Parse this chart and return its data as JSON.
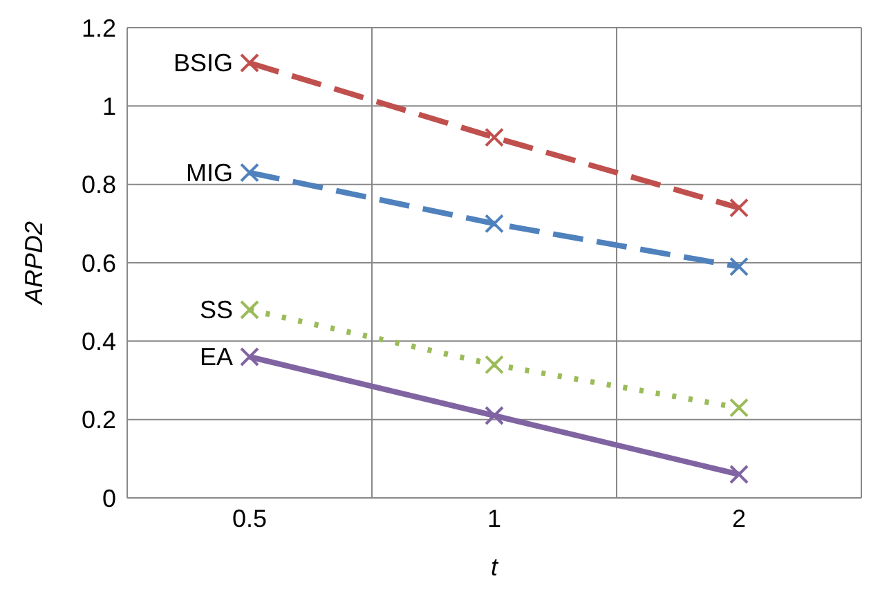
{
  "chart_data": {
    "type": "line",
    "xlabel": "t",
    "ylabel": "ARPD2",
    "categories": [
      "0.5",
      "1",
      "2"
    ],
    "series": [
      {
        "name": "BSIG",
        "color": "#c0504d",
        "line_style": "dashed",
        "values": [
          1.11,
          0.92,
          0.74
        ]
      },
      {
        "name": "MIG",
        "color": "#4f81bd",
        "line_style": "dashed",
        "values": [
          0.83,
          0.7,
          0.59
        ]
      },
      {
        "name": "SS",
        "color": "#9bbb59",
        "line_style": "dotted",
        "values": [
          0.48,
          0.34,
          0.23
        ]
      },
      {
        "name": "EA",
        "color": "#8064a2",
        "line_style": "solid",
        "values": [
          0.36,
          0.21,
          0.06
        ]
      }
    ],
    "ylim": [
      0,
      1.2
    ],
    "yticks": [
      0,
      0.2,
      0.4,
      0.6,
      0.8,
      1,
      1.2
    ],
    "grid": true,
    "marker": "cross",
    "legend": false
  }
}
